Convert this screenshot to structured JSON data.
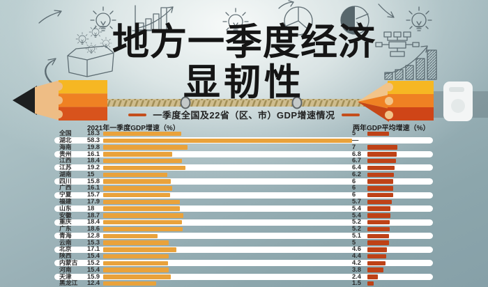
{
  "header": {
    "title_line1": "地方一季度经济",
    "title_line2": "显韧性",
    "subtitle": "一季度全国及22省（区、市）GDP增速情况"
  },
  "chart_data": {
    "type": "bar",
    "orientation": "horizontal",
    "title": "地方一季度经济显韧性",
    "subtitle": "一季度全国及22省（区、市）GDP增速情况",
    "left_header": "2021年一季度GDP增速（%）",
    "right_header": "两年GDP平均增速（%）",
    "categories": [
      "全国",
      "湖北",
      "海南",
      "贵州",
      "江西",
      "江苏",
      "湖南",
      "四川",
      "广西",
      "宁夏",
      "福建",
      "山东",
      "安徽",
      "重庆",
      "广东",
      "青海",
      "云南",
      "北京",
      "陕西",
      "内蒙古",
      "河南",
      "天津",
      "黑龙江"
    ],
    "series": [
      {
        "name": "2021年一季度GDP增速（%）",
        "color": "#E9A23B",
        "values": [
          18.3,
          58.3,
          19.8,
          16.1,
          18.4,
          19.2,
          15,
          15.8,
          16.1,
          15.7,
          17.9,
          18,
          18.7,
          18.4,
          18.6,
          12.8,
          15.3,
          17.1,
          15.4,
          15.2,
          15.4,
          15.9,
          12.4
        ]
      },
      {
        "name": "两年GDP平均增速（%）",
        "color": "#BE4217",
        "null_label": "—",
        "values": [
          5,
          null,
          7,
          6.8,
          6.7,
          6.4,
          6.2,
          6,
          6,
          6,
          5.7,
          5.4,
          5.4,
          5.2,
          5.2,
          5.1,
          5,
          4.6,
          4.4,
          4.2,
          3.8,
          2.4,
          1.5
        ]
      }
    ],
    "xlim": [
      0,
      60
    ],
    "gridlines": false,
    "value_labels": true,
    "legend_position": "column-headers",
    "row_highlight": "alternate-white-pill"
  },
  "colors": {
    "background_top": "#F2F5F4",
    "background_edge": "#8CA6AC",
    "q1_bar": "#E9A23B",
    "two_year_bar": "#BE4217",
    "row_pill": "#FFFFFF",
    "title_text": "#151515",
    "accent_dash": "#C44E1C",
    "doodle_stroke": "#4E5D64",
    "pencil_yellow": "#F6B723",
    "pencil_orange": "#EF8123",
    "pencil_red": "#D8531C",
    "rope": "#CFBD8E"
  },
  "decor": {
    "icons": [
      "arrow-up-icon",
      "lightbulb-icon",
      "growth-chart-doodle-icon",
      "lightbulb-icon",
      "pie-chart-outline-icon",
      "pie-chart-filled-icon",
      "curved-arrow-icon",
      "lightbulb-icon",
      "swoosh-arrow-icon",
      "idea-box-icon",
      "flowchart-icon",
      "hatched-bars-icon",
      "pencil-graphic",
      "rope-graphic",
      "correction-tape-graphic"
    ]
  }
}
